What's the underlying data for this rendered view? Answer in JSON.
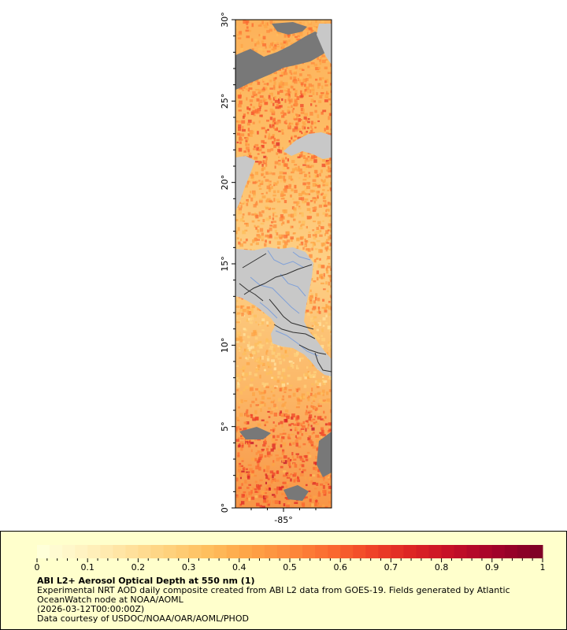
{
  "map": {
    "lat_ticks": [
      "0°",
      "5°",
      "10°",
      "15°",
      "20°",
      "25°",
      "30°"
    ],
    "lon_ticks": [
      "-85°"
    ],
    "colors": {
      "land": "#c8c8c8",
      "nodata": "#787878",
      "border": "#303030",
      "river": "#7fa0d8",
      "frame": "#000000"
    }
  },
  "legend": {
    "ticks": [
      "0",
      "0.1",
      "0.2",
      "0.3",
      "0.4",
      "0.5",
      "0.6",
      "0.7",
      "0.8",
      "0.9",
      "1"
    ],
    "colormap": [
      "#ffffd9",
      "#fff2c0",
      "#ffe3a0",
      "#fed27e",
      "#febf5e",
      "#fea446",
      "#fd8a3c",
      "#fb6a30",
      "#ef4328",
      "#dc2324",
      "#c30e28",
      "#a3022a",
      "#800026"
    ],
    "title": "ABI L2+ Aerosol Optical Depth at 550 nm (1)",
    "line1": "Experimental NRT AOD daily composite created from ABI L2 data from GOES-19. Fields generated by Atlantic",
    "line2": "OceanWatch node at NOAA/AOML",
    "line3": "(2026-03-12T00:00:00Z)",
    "line4": "Data courtesy of USDOC/NOAA/OAR/AOML/PHOD"
  }
}
